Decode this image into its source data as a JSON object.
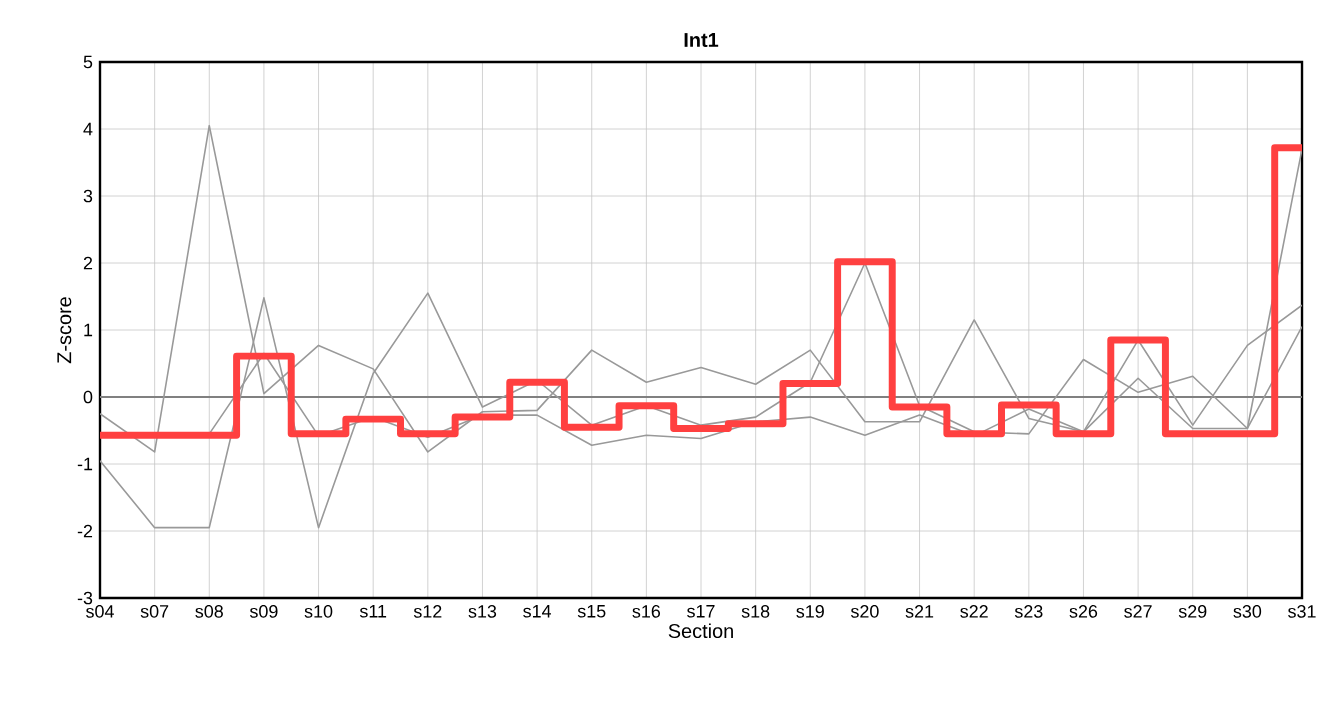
{
  "chart_data": {
    "type": "line",
    "title": "Int1",
    "xlabel": "Section",
    "ylabel": "Z-score",
    "categories": [
      "s04",
      "s07",
      "s08",
      "s09",
      "s10",
      "s11",
      "s12",
      "s13",
      "s14",
      "s15",
      "s16",
      "s17",
      "s18",
      "s19",
      "s20",
      "s21",
      "s22",
      "s23",
      "s26",
      "s27",
      "s29",
      "s30",
      "s31"
    ],
    "ylim": [
      -3,
      5
    ],
    "yticks": [
      -3,
      -2,
      -1,
      0,
      1,
      2,
      3,
      4,
      5
    ],
    "grid": true,
    "marker": "none",
    "ref_lines": [
      {
        "axis": "y",
        "value": 0,
        "color": "#808080"
      }
    ],
    "series": [
      {
        "type": "line",
        "color": "#999999",
        "values": [
          -0.25,
          -0.82,
          4.05,
          0.05,
          0.77,
          0.42,
          -0.82,
          -0.22,
          -0.2,
          0.7,
          0.22,
          0.44,
          0.19,
          0.7,
          -0.37,
          -0.37,
          1.15,
          -0.32,
          -0.52,
          0.85,
          -0.42,
          0.77,
          1.37
        ]
      },
      {
        "type": "line",
        "color": "#999999",
        "values": [
          -0.95,
          -1.95,
          -1.95,
          1.48,
          -1.95,
          0.35,
          1.55,
          -0.15,
          0.25,
          -0.42,
          -0.13,
          -0.42,
          -0.3,
          0.22,
          2.0,
          -0.13,
          -0.52,
          -0.55,
          0.56,
          0.07,
          0.31,
          -0.47,
          3.7
        ]
      },
      {
        "type": "line",
        "color": "#999999",
        "values": [
          -0.57,
          -0.57,
          -0.55,
          0.65,
          -0.58,
          -0.3,
          -0.6,
          -0.27,
          -0.27,
          -0.72,
          -0.57,
          -0.62,
          -0.37,
          -0.3,
          -0.57,
          -0.27,
          -0.58,
          -0.18,
          -0.52,
          0.28,
          -0.47,
          -0.47,
          1.05
        ]
      },
      {
        "type": "step",
        "color": "#ff4040",
        "values": [
          -0.57,
          -0.57,
          -0.57,
          0.61,
          -0.55,
          -0.33,
          -0.55,
          -0.3,
          0.22,
          -0.45,
          -0.13,
          -0.47,
          -0.4,
          0.2,
          2.02,
          -0.15,
          -0.55,
          -0.12,
          -0.55,
          0.85,
          -0.55,
          -0.55,
          3.72
        ]
      }
    ]
  }
}
